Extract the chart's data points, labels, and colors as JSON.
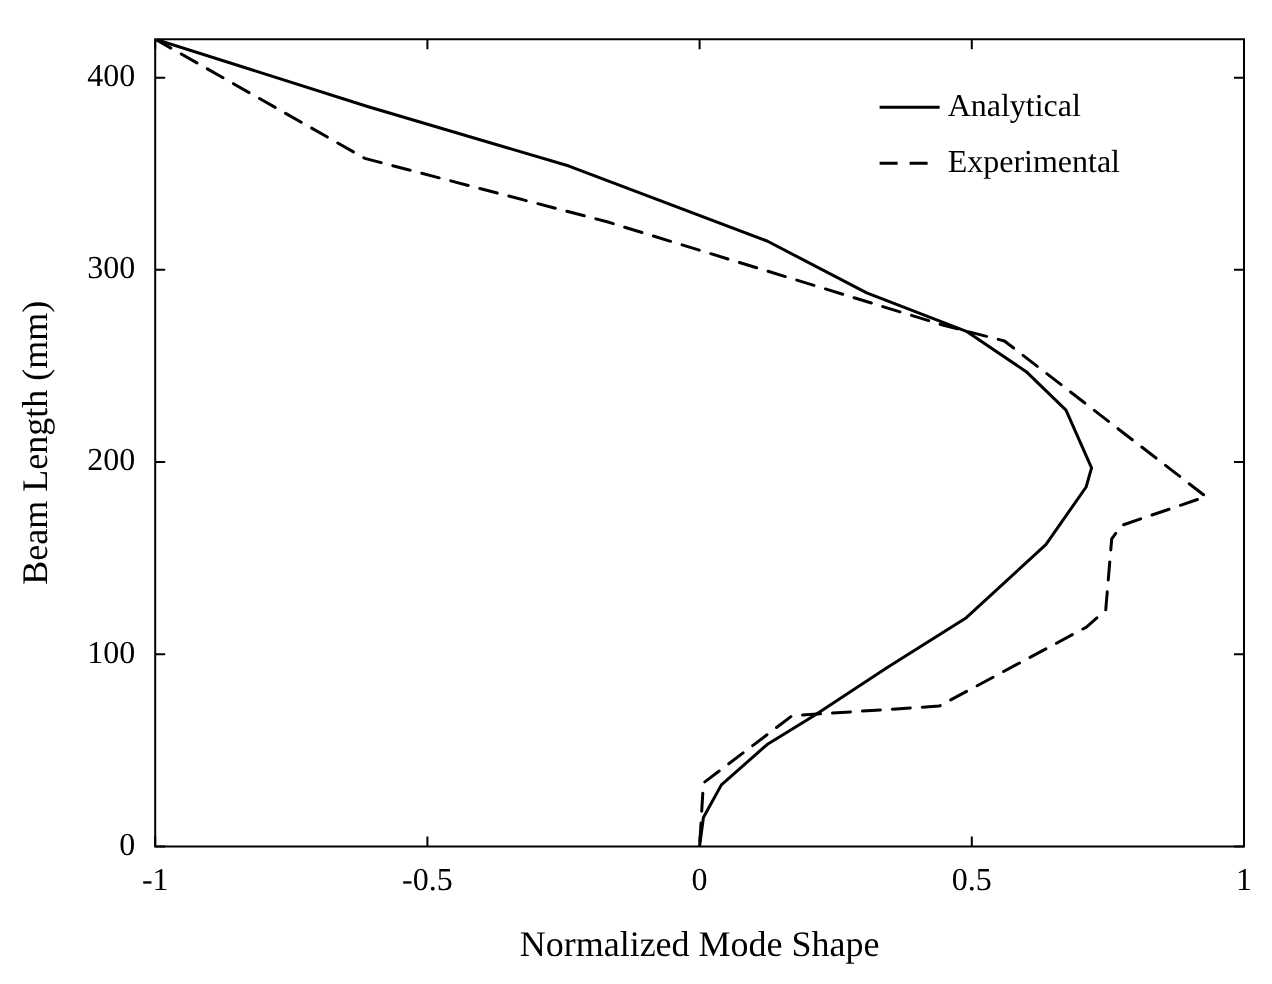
{
  "chart_data": {
    "type": "line",
    "xlabel": "Normalized Mode Shape",
    "ylabel": "Beam Length (mm)",
    "xlim": [
      -1,
      1
    ],
    "xticks": [
      -1,
      -0.5,
      0,
      0.5,
      1
    ],
    "ylim": [
      0,
      420
    ],
    "yticks": [
      0,
      100,
      200,
      300,
      400
    ],
    "grid": false,
    "legend": "top right",
    "marker": "none",
    "series": [
      {
        "name": "Analytical",
        "color": "#000000",
        "line_style": "solid",
        "x": [
          -1,
          -0.61,
          -0.24,
          0.124,
          0.307,
          0.49,
          0.6,
          0.673,
          0.72,
          0.71,
          0.636,
          0.49,
          0.344,
          0.21,
          0.124,
          0.04,
          0.007,
          0
        ],
        "values": [
          420,
          385,
          354,
          315,
          288,
          268,
          247,
          227,
          197,
          187,
          157,
          119,
          93,
          68,
          53,
          32,
          15,
          0
        ]
      },
      {
        "name": "Experimental",
        "color": "#000000",
        "line_style": "dashed",
        "x": [
          -1,
          -0.615,
          -0.17,
          0.45,
          0.56,
          0.93,
          0.775,
          0.757,
          0.746,
          0.71,
          0.44,
          0.17,
          0.007,
          0
        ],
        "values": [
          420,
          358,
          325,
          271,
          263,
          182,
          167,
          160,
          123,
          114,
          73,
          68,
          33,
          0
        ]
      }
    ]
  }
}
